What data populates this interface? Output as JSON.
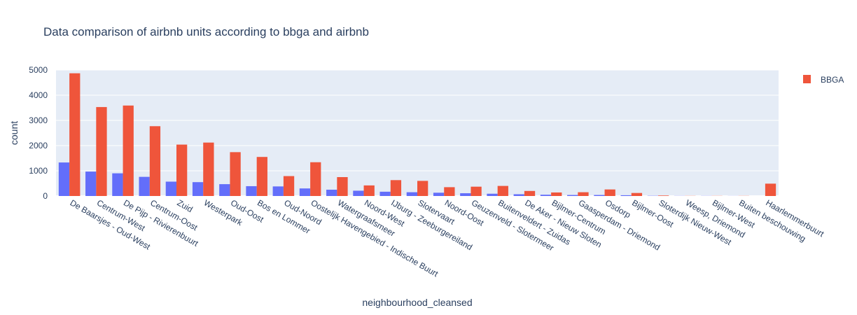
{
  "chart_data": {
    "type": "bar",
    "title": "Data comparison of airbnb units according to bbga and airbnb",
    "xlabel": "neighbourhood_cleansed",
    "ylabel": "count",
    "ylim": [
      0,
      5000
    ],
    "yticks": [
      0,
      1000,
      2000,
      3000,
      4000,
      5000
    ],
    "grid": true,
    "legend_position": "top-right",
    "categories": [
      "De Baarsjes - Oud-West",
      "Centrum-West",
      "De Pijp - Rivierenbuurt",
      "Centrum-Oost",
      "Zuid",
      "Westerpark",
      "Oud-Oost",
      "Bos en Lommer",
      "Oud-Noord",
      "Oostelijk Havengebied - Indische Buurt",
      "Watergraafsmeer",
      "Noord-West",
      "IJburg - Zeeburgereiland",
      "Slotervaart",
      "Noord-Oost",
      "Geuzenveld - Slotermeer",
      "Buitenveldert - Zuidas",
      "De Aker - Nieuw Sloten",
      "Bijlmer-Centrum",
      "Gaasperdam - Driemond",
      "Osdorp",
      "Bijlmer-Oost",
      "Sloterdijk Nieuw-West",
      "Weesp, Driemond",
      "Bijlmer-West",
      "Buiten beschouwing",
      "Haarlemmerbuurt"
    ],
    "series": [
      {
        "values": [
          1330,
          970,
          900,
          760,
          570,
          550,
          470,
          390,
          380,
          300,
          250,
          210,
          170,
          150,
          130,
          110,
          90,
          70,
          50,
          40,
          40,
          30,
          10,
          5,
          5,
          3,
          0
        ],
        "color": "#636efa"
      },
      {
        "name": "BBGA",
        "values": [
          4870,
          3530,
          3590,
          2770,
          2040,
          2120,
          1740,
          1550,
          790,
          1340,
          750,
          420,
          630,
          600,
          350,
          370,
          400,
          200,
          140,
          150,
          260,
          120,
          20,
          5,
          5,
          5,
          490
        ],
        "color": "#ef553b"
      }
    ]
  }
}
